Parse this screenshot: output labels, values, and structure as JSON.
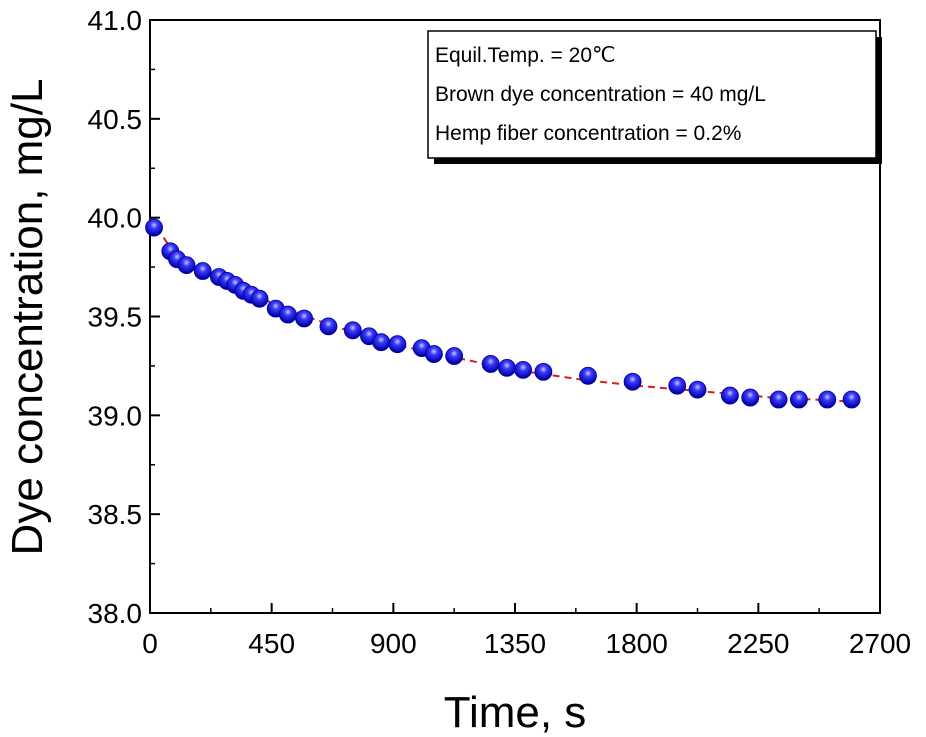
{
  "chart_data": {
    "type": "scatter",
    "title": "",
    "xlabel": "Time, s",
    "ylabel": "Dye concentration, mg/L",
    "xlim": [
      0,
      2700
    ],
    "ylim": [
      38.0,
      41.0
    ],
    "x_ticks": [
      "0",
      "450",
      "900",
      "1350",
      "1800",
      "2250",
      "2700"
    ],
    "y_ticks": [
      "38.0",
      "38.5",
      "39.0",
      "39.5",
      "40.0",
      "40.5",
      "41.0"
    ],
    "grid": false,
    "legend_position": "top-right",
    "annotations": [
      "Equil.Temp. = 20℃",
      "Brown dye concentration = 40 mg/L",
      "Hemp fiber concentration = 0.2%"
    ],
    "series": [
      {
        "style": "marker",
        "color": "#1a1ae6",
        "x": [
          15,
          75,
          100,
          135,
          195,
          255,
          285,
          315,
          345,
          375,
          405,
          465,
          510,
          570,
          660,
          750,
          810,
          855,
          915,
          1005,
          1050,
          1125,
          1260,
          1320,
          1380,
          1455,
          1620,
          1785,
          1950,
          2025,
          2145,
          2220,
          2325,
          2400,
          2505,
          2595
        ],
        "y": [
          39.95,
          39.83,
          39.79,
          39.76,
          39.73,
          39.7,
          39.68,
          39.66,
          39.63,
          39.61,
          39.59,
          39.54,
          39.51,
          39.49,
          39.45,
          39.43,
          39.4,
          39.37,
          39.36,
          39.34,
          39.31,
          39.3,
          39.26,
          39.24,
          39.23,
          39.22,
          39.2,
          39.17,
          39.15,
          39.13,
          39.1,
          39.09,
          39.08,
          39.08,
          39.08,
          39.08
        ]
      },
      {
        "style": "dashed-fit",
        "color": "#d42020",
        "x": [
          0,
          100,
          200,
          300,
          450,
          600,
          750,
          900,
          1100,
          1350,
          1600,
          1800,
          2050,
          2300,
          2600
        ],
        "y": [
          40.0,
          39.8,
          39.72,
          39.66,
          39.57,
          39.49,
          39.42,
          39.36,
          39.3,
          39.23,
          39.18,
          39.15,
          39.12,
          39.09,
          39.07
        ]
      }
    ]
  }
}
